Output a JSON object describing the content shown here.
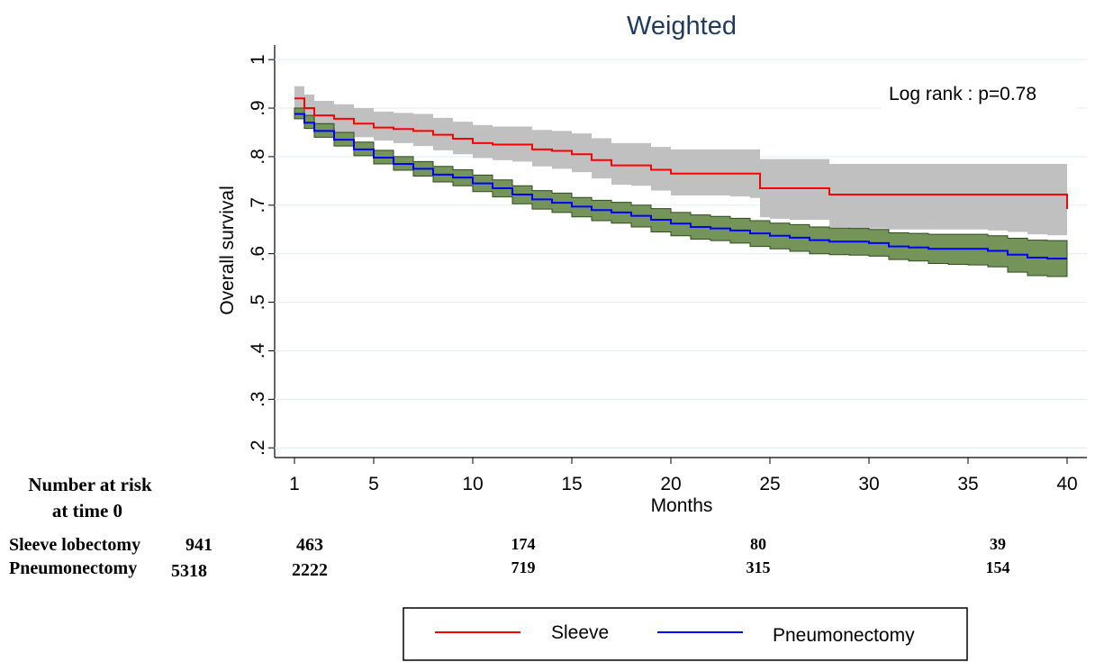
{
  "chart_data": {
    "type": "line",
    "title": "Weighted",
    "xlabel": "Months",
    "ylabel": "Overall survival",
    "xlim": [
      0,
      41
    ],
    "ylim": [
      0.18,
      1.03
    ],
    "x_ticks": [
      1,
      5,
      10,
      15,
      20,
      25,
      30,
      35,
      40
    ],
    "x_tick_labels": [
      "1",
      "5",
      "10",
      "15",
      "20",
      "25",
      "30",
      "35",
      "40"
    ],
    "y_ticks": [
      0.2,
      0.3,
      0.4,
      0.5,
      0.6,
      0.7,
      0.8,
      0.9,
      1.0
    ],
    "y_tick_labels": [
      ".2",
      ".3",
      ".4",
      ".5",
      ".6",
      ".7",
      ".8",
      ".9",
      "1"
    ],
    "grid": true,
    "annotation": "Log rank : p=0.78",
    "legend_position": "bottom",
    "series": [
      {
        "name": "Sleeve",
        "color": "#ff0000",
        "band_color": "#c0c0c0",
        "x": [
          1,
          1.5,
          2,
          3,
          4,
          5,
          6,
          7,
          8,
          9,
          10,
          11,
          12,
          13,
          14,
          15,
          16,
          17,
          18,
          19,
          20,
          21,
          22,
          23,
          24,
          24.5,
          25,
          26,
          27,
          28,
          29,
          30,
          31,
          32,
          33,
          34,
          35,
          36,
          37,
          38,
          39,
          40
        ],
        "y": [
          0.92,
          0.9,
          0.885,
          0.878,
          0.868,
          0.86,
          0.857,
          0.853,
          0.845,
          0.837,
          0.828,
          0.825,
          0.825,
          0.815,
          0.812,
          0.805,
          0.793,
          0.782,
          0.782,
          0.773,
          0.765,
          0.765,
          0.765,
          0.765,
          0.765,
          0.735,
          0.735,
          0.735,
          0.735,
          0.722,
          0.722,
          0.722,
          0.722,
          0.722,
          0.722,
          0.722,
          0.722,
          0.722,
          0.722,
          0.722,
          0.722,
          0.692
        ],
        "lower": [
          0.895,
          0.875,
          0.858,
          0.85,
          0.84,
          0.833,
          0.828,
          0.822,
          0.813,
          0.805,
          0.797,
          0.793,
          0.79,
          0.78,
          0.775,
          0.768,
          0.755,
          0.742,
          0.74,
          0.73,
          0.72,
          0.72,
          0.72,
          0.718,
          0.715,
          0.675,
          0.672,
          0.67,
          0.67,
          0.655,
          0.653,
          0.652,
          0.65,
          0.65,
          0.65,
          0.65,
          0.65,
          0.648,
          0.645,
          0.64,
          0.638,
          0.6
        ],
        "upper": [
          0.945,
          0.928,
          0.915,
          0.908,
          0.9,
          0.893,
          0.89,
          0.888,
          0.88,
          0.872,
          0.865,
          0.862,
          0.862,
          0.855,
          0.853,
          0.848,
          0.838,
          0.828,
          0.828,
          0.82,
          0.815,
          0.815,
          0.815,
          0.815,
          0.815,
          0.795,
          0.795,
          0.795,
          0.795,
          0.785,
          0.785,
          0.785,
          0.785,
          0.785,
          0.785,
          0.785,
          0.785,
          0.785,
          0.785,
          0.785,
          0.785,
          0.768
        ]
      },
      {
        "name": "Pneumonectomy",
        "color": "#0000ff",
        "band_color": "#74945a",
        "x": [
          1,
          1.5,
          2,
          3,
          4,
          5,
          6,
          7,
          8,
          9,
          10,
          11,
          12,
          13,
          14,
          15,
          16,
          17,
          18,
          19,
          20,
          21,
          22,
          23,
          24,
          25,
          26,
          27,
          28,
          29,
          30,
          31,
          32,
          33,
          34,
          35,
          36,
          37,
          38,
          39,
          40
        ],
        "y": [
          0.888,
          0.87,
          0.853,
          0.835,
          0.815,
          0.798,
          0.785,
          0.775,
          0.763,
          0.757,
          0.745,
          0.735,
          0.722,
          0.712,
          0.705,
          0.697,
          0.69,
          0.685,
          0.678,
          0.67,
          0.662,
          0.655,
          0.652,
          0.648,
          0.642,
          0.637,
          0.633,
          0.628,
          0.625,
          0.625,
          0.622,
          0.615,
          0.613,
          0.61,
          0.61,
          0.61,
          0.606,
          0.598,
          0.592,
          0.59,
          0.59
        ],
        "lower": [
          0.878,
          0.858,
          0.84,
          0.822,
          0.802,
          0.785,
          0.772,
          0.76,
          0.748,
          0.74,
          0.728,
          0.717,
          0.703,
          0.692,
          0.685,
          0.676,
          0.668,
          0.663,
          0.655,
          0.645,
          0.637,
          0.63,
          0.627,
          0.622,
          0.615,
          0.61,
          0.605,
          0.6,
          0.598,
          0.597,
          0.595,
          0.588,
          0.585,
          0.58,
          0.578,
          0.577,
          0.573,
          0.562,
          0.555,
          0.553,
          0.552
        ],
        "upper": [
          0.9,
          0.885,
          0.868,
          0.85,
          0.83,
          0.813,
          0.8,
          0.79,
          0.78,
          0.773,
          0.762,
          0.752,
          0.74,
          0.73,
          0.725,
          0.716,
          0.71,
          0.706,
          0.7,
          0.693,
          0.685,
          0.68,
          0.677,
          0.673,
          0.668,
          0.663,
          0.66,
          0.655,
          0.653,
          0.652,
          0.65,
          0.643,
          0.642,
          0.64,
          0.64,
          0.64,
          0.637,
          0.632,
          0.628,
          0.627,
          0.625
        ]
      }
    ]
  },
  "risk_table": {
    "heading_line1": "Number at risk",
    "heading_line2": "at time 0",
    "rows": [
      {
        "label": "Sleeve lobectomy",
        "at_time0": "941",
        "counts": [
          "463",
          "174",
          "80",
          "39"
        ]
      },
      {
        "label": "Pneumonectomy",
        "at_time0": "5318",
        "counts": [
          "2222",
          "719",
          "315",
          "154"
        ]
      }
    ]
  },
  "legend": {
    "items": [
      {
        "label": "Sleeve",
        "color": "#ff0000"
      },
      {
        "label": "Pneumonectomy",
        "color": "#0000ff"
      }
    ]
  }
}
